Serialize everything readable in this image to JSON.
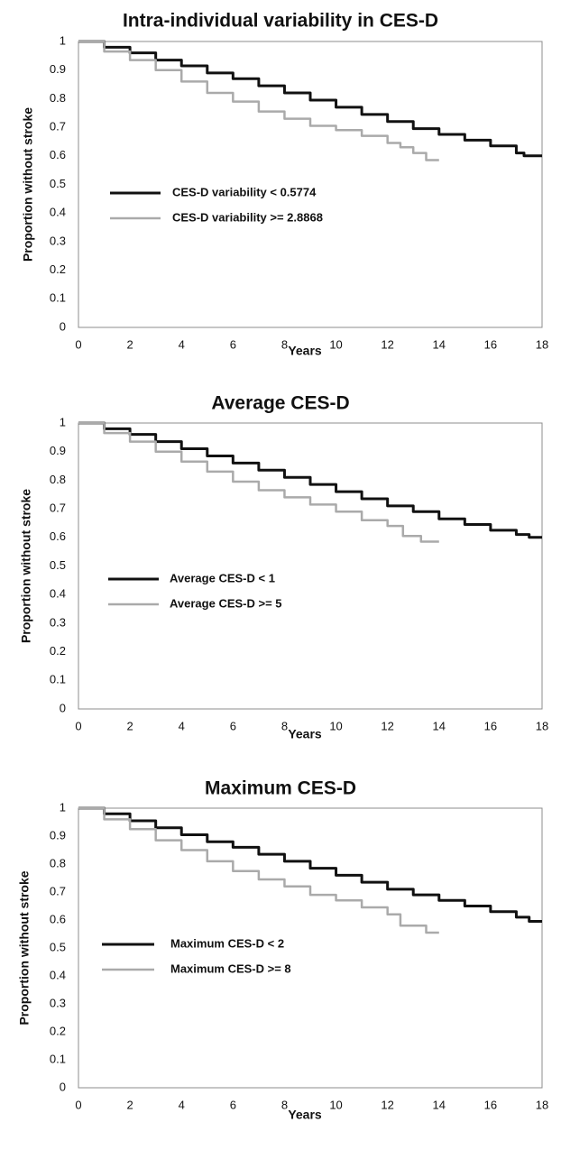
{
  "chart_data": [
    {
      "type": "line",
      "title": "Intra-individual variability in CES-D",
      "xlabel": "Years",
      "ylabel": "Proportion without stroke",
      "xlim": [
        0,
        18
      ],
      "ylim": [
        0,
        1
      ],
      "x_ticks": [
        "0",
        "2",
        "4",
        "6",
        "8",
        "10",
        "12",
        "14",
        "16",
        "18"
      ],
      "y_ticks": [
        "0",
        "0.1",
        "0.2",
        "0.3",
        "0.4",
        "0.5",
        "0.6",
        "0.7",
        "0.8",
        "0.9",
        "1"
      ],
      "grid": false,
      "legend_position": "middle-left",
      "series": [
        {
          "name": "CES-D variability < 0.5774",
          "color": "#111111",
          "x": [
            0,
            1,
            2,
            3,
            4,
            5,
            6,
            7,
            8,
            9,
            10,
            11,
            12,
            13,
            14,
            15,
            16,
            17,
            17.3,
            18
          ],
          "y": [
            1.0,
            0.98,
            0.96,
            0.935,
            0.915,
            0.89,
            0.87,
            0.845,
            0.82,
            0.795,
            0.77,
            0.745,
            0.72,
            0.695,
            0.675,
            0.655,
            0.635,
            0.61,
            0.6,
            0.6
          ]
        },
        {
          "name": "CES-D variability >= 2.8868",
          "color": "#aaaaaa",
          "x": [
            0,
            1,
            2,
            3,
            4,
            5,
            6,
            7,
            8,
            9,
            10,
            11,
            12,
            12.5,
            13,
            13.5,
            14
          ],
          "y": [
            1.0,
            0.965,
            0.935,
            0.9,
            0.86,
            0.82,
            0.79,
            0.755,
            0.73,
            0.705,
            0.69,
            0.67,
            0.645,
            0.63,
            0.61,
            0.585,
            0.585
          ]
        }
      ]
    },
    {
      "type": "line",
      "title": "Average CES-D",
      "xlabel": "Years",
      "ylabel": "Proportion without stroke",
      "xlim": [
        0,
        18
      ],
      "ylim": [
        0,
        1
      ],
      "x_ticks": [
        "0",
        "2",
        "4",
        "6",
        "8",
        "10",
        "12",
        "14",
        "16",
        "18"
      ],
      "y_ticks": [
        "0",
        "0.1",
        "0.2",
        "0.3",
        "0.4",
        "0.5",
        "0.6",
        "0.7",
        "0.8",
        "0.9",
        "1"
      ],
      "grid": false,
      "legend_position": "middle-left",
      "series": [
        {
          "name": "Average CES-D < 1",
          "color": "#111111",
          "x": [
            0,
            1,
            2,
            3,
            4,
            5,
            6,
            7,
            8,
            9,
            10,
            11,
            12,
            13,
            14,
            15,
            16,
            17,
            17.5,
            18
          ],
          "y": [
            1.0,
            0.98,
            0.96,
            0.935,
            0.91,
            0.885,
            0.86,
            0.835,
            0.81,
            0.785,
            0.76,
            0.735,
            0.71,
            0.69,
            0.665,
            0.645,
            0.625,
            0.61,
            0.6,
            0.6
          ]
        },
        {
          "name": "Average CES-D >= 5",
          "color": "#aaaaaa",
          "x": [
            0,
            1,
            2,
            3,
            4,
            5,
            6,
            7,
            8,
            9,
            10,
            11,
            12,
            12.6,
            13.3,
            14
          ],
          "y": [
            1.0,
            0.965,
            0.935,
            0.9,
            0.865,
            0.83,
            0.795,
            0.765,
            0.74,
            0.715,
            0.69,
            0.66,
            0.64,
            0.605,
            0.585,
            0.585
          ]
        }
      ]
    },
    {
      "type": "line",
      "title": "Maximum CES-D",
      "xlabel": "Years",
      "ylabel": "Proportion without stroke",
      "xlim": [
        0,
        18
      ],
      "ylim": [
        0,
        1
      ],
      "x_ticks": [
        "0",
        "2",
        "4",
        "6",
        "8",
        "10",
        "12",
        "14",
        "16",
        "18"
      ],
      "y_ticks": [
        "0",
        "0.1",
        "0.2",
        "0.3",
        "0.4",
        "0.5",
        "0.6",
        "0.7",
        "0.8",
        "0.9",
        "1"
      ],
      "grid": false,
      "legend_position": "lower-left",
      "series": [
        {
          "name": "Maximum CES-D < 2",
          "color": "#111111",
          "x": [
            0,
            1,
            2,
            3,
            4,
            5,
            6,
            7,
            8,
            9,
            10,
            11,
            12,
            13,
            14,
            15,
            16,
            17,
            17.5,
            18
          ],
          "y": [
            1.0,
            0.98,
            0.955,
            0.93,
            0.905,
            0.88,
            0.86,
            0.835,
            0.81,
            0.785,
            0.76,
            0.735,
            0.71,
            0.69,
            0.67,
            0.65,
            0.63,
            0.61,
            0.595,
            0.595
          ]
        },
        {
          "name": "Maximum CES-D >= 8",
          "color": "#aaaaaa",
          "x": [
            0,
            1,
            2,
            3,
            4,
            5,
            6,
            7,
            8,
            9,
            10,
            11,
            12,
            12.5,
            13.5,
            14
          ],
          "y": [
            1.0,
            0.96,
            0.925,
            0.885,
            0.85,
            0.81,
            0.775,
            0.745,
            0.72,
            0.69,
            0.67,
            0.645,
            0.62,
            0.58,
            0.555,
            0.555
          ]
        }
      ]
    }
  ]
}
